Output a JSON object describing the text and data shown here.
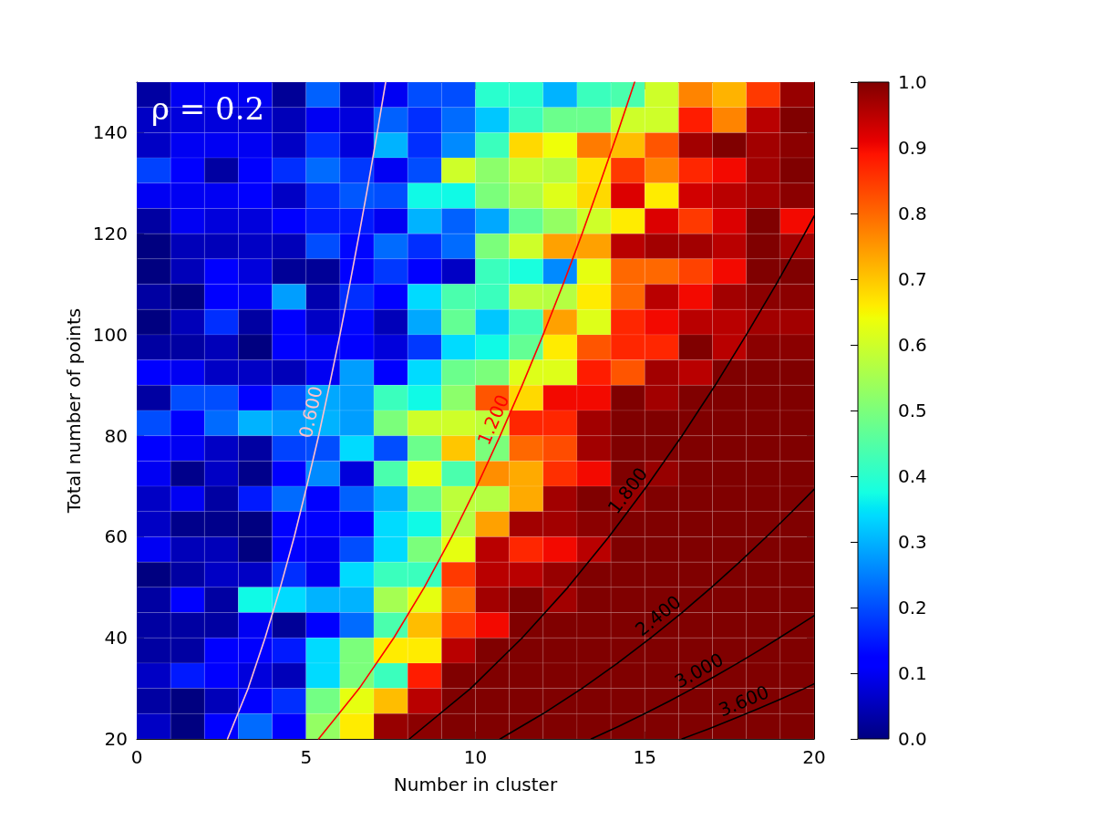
{
  "chart_data": {
    "type": "heatmap",
    "xlabel": "Number in cluster",
    "ylabel": "Total number of points",
    "annotations": [
      "ρ = 0.2"
    ],
    "xlim": [
      0,
      20
    ],
    "xticks": [
      0,
      5,
      10,
      15,
      20
    ],
    "ylim": [
      20,
      150
    ],
    "yticks": [
      20,
      40,
      60,
      80,
      100,
      120,
      140
    ],
    "clim": [
      0,
      1
    ],
    "cticks": [
      {
        "value": 0,
        "label": "0.0"
      },
      0.1,
      0.2,
      0.3,
      0.4,
      0.5,
      0.6,
      0.7,
      0.8,
      0.9,
      {
        "value": 1,
        "label": "1.0"
      }
    ],
    "cells": [
      [
        0.03,
        0.1,
        0.1,
        0.1,
        0.02,
        0.22,
        0.06,
        0.1,
        0.2,
        0.2,
        0.4,
        0.4,
        0.3,
        0.42,
        0.44,
        0.6,
        0.77,
        0.72,
        0.85,
        0.98
      ],
      [
        0.06,
        0.08,
        0.08,
        0.08,
        0.05,
        0.1,
        0.08,
        0.22,
        0.17,
        0.23,
        0.32,
        0.42,
        0.48,
        0.48,
        0.6,
        0.6,
        0.88,
        0.77,
        0.95,
        1.0
      ],
      [
        0.06,
        0.1,
        0.1,
        0.1,
        0.06,
        0.17,
        0.08,
        0.3,
        0.17,
        0.26,
        0.42,
        0.68,
        0.64,
        0.78,
        0.71,
        0.82,
        0.97,
        1.0,
        0.97,
        0.99
      ],
      [
        0.19,
        0.11,
        0.03,
        0.11,
        0.17,
        0.23,
        0.18,
        0.1,
        0.2,
        0.6,
        0.52,
        0.59,
        0.57,
        0.67,
        0.85,
        0.77,
        0.87,
        0.9,
        0.97,
        1.0
      ],
      [
        0.1,
        0.1,
        0.1,
        0.11,
        0.06,
        0.17,
        0.21,
        0.2,
        0.37,
        0.37,
        0.5,
        0.56,
        0.62,
        0.68,
        0.92,
        0.66,
        0.93,
        0.95,
        0.97,
        0.99
      ],
      [
        0.03,
        0.1,
        0.08,
        0.08,
        0.11,
        0.15,
        0.15,
        0.1,
        0.3,
        0.22,
        0.29,
        0.47,
        0.53,
        0.6,
        0.66,
        0.92,
        0.85,
        0.92,
        1.0,
        0.9
      ],
      [
        0.0,
        0.05,
        0.05,
        0.06,
        0.05,
        0.2,
        0.13,
        0.23,
        0.17,
        0.23,
        0.5,
        0.6,
        0.74,
        0.74,
        0.95,
        0.97,
        0.97,
        0.95,
        1.0,
        0.97
      ],
      [
        0.0,
        0.05,
        0.11,
        0.08,
        0.02,
        0.02,
        0.11,
        0.18,
        0.11,
        0.06,
        0.42,
        0.38,
        0.26,
        0.63,
        0.8,
        0.8,
        0.84,
        0.9,
        1.0,
        1.0
      ],
      [
        0.03,
        0.0,
        0.11,
        0.1,
        0.28,
        0.04,
        0.17,
        0.11,
        0.34,
        0.44,
        0.42,
        0.58,
        0.57,
        0.66,
        0.8,
        0.95,
        0.9,
        0.97,
        0.99,
        0.99
      ],
      [
        0.0,
        0.05,
        0.17,
        0.03,
        0.11,
        0.06,
        0.13,
        0.05,
        0.29,
        0.47,
        0.32,
        0.43,
        0.74,
        0.62,
        0.87,
        0.9,
        0.95,
        0.95,
        0.97,
        0.97
      ],
      [
        0.03,
        0.03,
        0.05,
        0.0,
        0.11,
        0.1,
        0.11,
        0.08,
        0.18,
        0.34,
        0.37,
        0.47,
        0.66,
        0.82,
        0.87,
        0.87,
        1.0,
        0.95,
        0.99,
        0.99
      ],
      [
        0.11,
        0.1,
        0.06,
        0.06,
        0.05,
        0.1,
        0.28,
        0.11,
        0.34,
        0.48,
        0.5,
        0.62,
        0.62,
        0.88,
        0.82,
        0.97,
        0.95,
        1.0,
        1.0,
        1.0
      ],
      [
        0.03,
        0.2,
        0.2,
        0.11,
        0.2,
        0.29,
        0.28,
        0.42,
        0.37,
        0.52,
        0.82,
        0.68,
        0.9,
        0.9,
        1.0,
        0.97,
        1.0,
        1.0,
        1.0,
        1.0
      ],
      [
        0.2,
        0.11,
        0.23,
        0.3,
        0.28,
        0.3,
        0.28,
        0.5,
        0.6,
        0.6,
        0.58,
        0.87,
        0.87,
        0.97,
        1.0,
        1.0,
        1.0,
        1.0,
        1.0,
        1.0
      ],
      [
        0.11,
        0.1,
        0.06,
        0.03,
        0.19,
        0.2,
        0.34,
        0.2,
        0.48,
        0.7,
        0.5,
        0.8,
        0.83,
        0.97,
        1.0,
        1.0,
        1.0,
        1.0,
        1.0,
        1.0
      ],
      [
        0.1,
        0.01,
        0.06,
        0.01,
        0.11,
        0.26,
        0.08,
        0.44,
        0.63,
        0.44,
        0.76,
        0.73,
        0.86,
        0.9,
        1.0,
        0.98,
        1.0,
        1.0,
        1.0,
        1.0
      ],
      [
        0.06,
        0.1,
        0.03,
        0.15,
        0.23,
        0.11,
        0.22,
        0.3,
        0.48,
        0.58,
        0.57,
        0.73,
        0.97,
        1.0,
        0.98,
        1.0,
        1.0,
        1.0,
        1.0,
        1.0
      ],
      [
        0.06,
        0.01,
        0.01,
        0.0,
        0.11,
        0.11,
        0.11,
        0.34,
        0.37,
        0.57,
        0.74,
        0.97,
        0.97,
        0.99,
        1.0,
        1.0,
        1.0,
        1.0,
        1.0,
        1.0
      ],
      [
        0.1,
        0.05,
        0.05,
        0.0,
        0.11,
        0.1,
        0.2,
        0.34,
        0.5,
        0.63,
        0.95,
        0.87,
        0.9,
        0.95,
        1.0,
        1.0,
        1.0,
        1.0,
        1.0,
        1.0
      ],
      [
        0.0,
        0.03,
        0.06,
        0.06,
        0.17,
        0.1,
        0.34,
        0.42,
        0.42,
        0.85,
        0.95,
        0.95,
        0.98,
        1.0,
        1.0,
        1.0,
        1.0,
        1.0,
        1.0,
        1.0
      ],
      [
        0.03,
        0.11,
        0.03,
        0.37,
        0.34,
        0.3,
        0.3,
        0.55,
        0.63,
        0.8,
        0.97,
        1.0,
        0.97,
        1.0,
        1.0,
        1.0,
        1.0,
        1.0,
        1.0,
        1.0
      ],
      [
        0.03,
        0.03,
        0.03,
        0.1,
        0.02,
        0.11,
        0.23,
        0.44,
        0.71,
        0.85,
        0.9,
        1.0,
        1.0,
        1.0,
        1.0,
        1.0,
        1.0,
        1.0,
        1.0,
        1.0
      ],
      [
        0.03,
        0.03,
        0.11,
        0.11,
        0.15,
        0.34,
        0.5,
        0.66,
        0.66,
        0.95,
        1.0,
        1.0,
        1.0,
        1.0,
        1.0,
        1.0,
        1.0,
        1.0,
        1.0,
        1.0
      ],
      [
        0.06,
        0.15,
        0.11,
        0.08,
        0.05,
        0.34,
        0.5,
        0.42,
        0.88,
        1.0,
        1.0,
        1.0,
        1.0,
        1.0,
        1.0,
        1.0,
        1.0,
        1.0,
        1.0,
        1.0
      ],
      [
        0.03,
        0.0,
        0.05,
        0.11,
        0.17,
        0.49,
        0.63,
        0.71,
        0.95,
        1.0,
        1.0,
        1.0,
        1.0,
        1.0,
        1.0,
        1.0,
        1.0,
        1.0,
        1.0,
        1.0
      ],
      [
        0.06,
        0.0,
        0.11,
        0.23,
        0.11,
        0.53,
        0.66,
        0.98,
        0.99,
        1.0,
        1.0,
        1.0,
        1.0,
        1.0,
        1.0,
        1.0,
        1.0,
        1.0,
        1.0,
        1.0
      ]
    ],
    "marker": "none",
    "series": [
      {
        "type": "line",
        "name": "0.600",
        "color": "#ffc0cb",
        "x": [
          2.68,
          3.29,
          3.79,
          4.24,
          4.65,
          5.02,
          5.37,
          5.69,
          6.0,
          6.29,
          6.57,
          6.84,
          7.1,
          7.35
        ],
        "values": [
          20,
          30,
          40,
          50,
          60,
          70,
          80,
          90,
          100,
          110,
          120,
          130,
          140,
          150
        ]
      },
      {
        "type": "line",
        "name": "1.200",
        "color": "#ff0000",
        "x": [
          5.37,
          6.57,
          7.59,
          8.49,
          9.3,
          10.04,
          10.73,
          11.38,
          12.0,
          12.59,
          13.15,
          13.68,
          14.2,
          14.7
        ],
        "values": [
          20,
          30,
          40,
          50,
          60,
          70,
          80,
          90,
          100,
          110,
          120,
          130,
          140,
          150
        ]
      },
      {
        "type": "line",
        "name": "1.800",
        "color": "#000000",
        "x": [
          8.05,
          9.86,
          11.38,
          12.73,
          13.94,
          15.06,
          16.1,
          17.08,
          18.0,
          18.88,
          19.72,
          20
        ],
        "values": [
          20,
          30,
          40,
          50,
          60,
          70,
          80,
          90,
          100,
          110,
          120,
          123.5
        ]
      },
      {
        "type": "line",
        "name": "2.400",
        "color": "#000000",
        "x": [
          10.73,
          12.0,
          13.15,
          14.2,
          15.18,
          16.1,
          16.97,
          17.8,
          18.59,
          19.35,
          20
        ],
        "values": [
          20,
          25,
          30,
          35,
          40,
          45,
          50,
          55,
          60,
          65,
          69.4
        ]
      },
      {
        "type": "line",
        "name": "3.000",
        "color": "#000000",
        "x": [
          13.42,
          14.23,
          15.0,
          15.73,
          16.43,
          17.1,
          17.75,
          18.37,
          18.97,
          19.56,
          20
        ],
        "values": [
          20,
          22.5,
          25,
          27.5,
          30,
          32.5,
          35,
          37.5,
          40,
          42.5,
          44.4
        ]
      },
      {
        "type": "line",
        "name": "3.600",
        "color": "#000000",
        "x": [
          16.1,
          16.89,
          17.64,
          18.36,
          19.05,
          19.72,
          20
        ],
        "values": [
          20,
          22,
          24,
          26,
          28,
          30,
          30.9
        ]
      }
    ]
  }
}
